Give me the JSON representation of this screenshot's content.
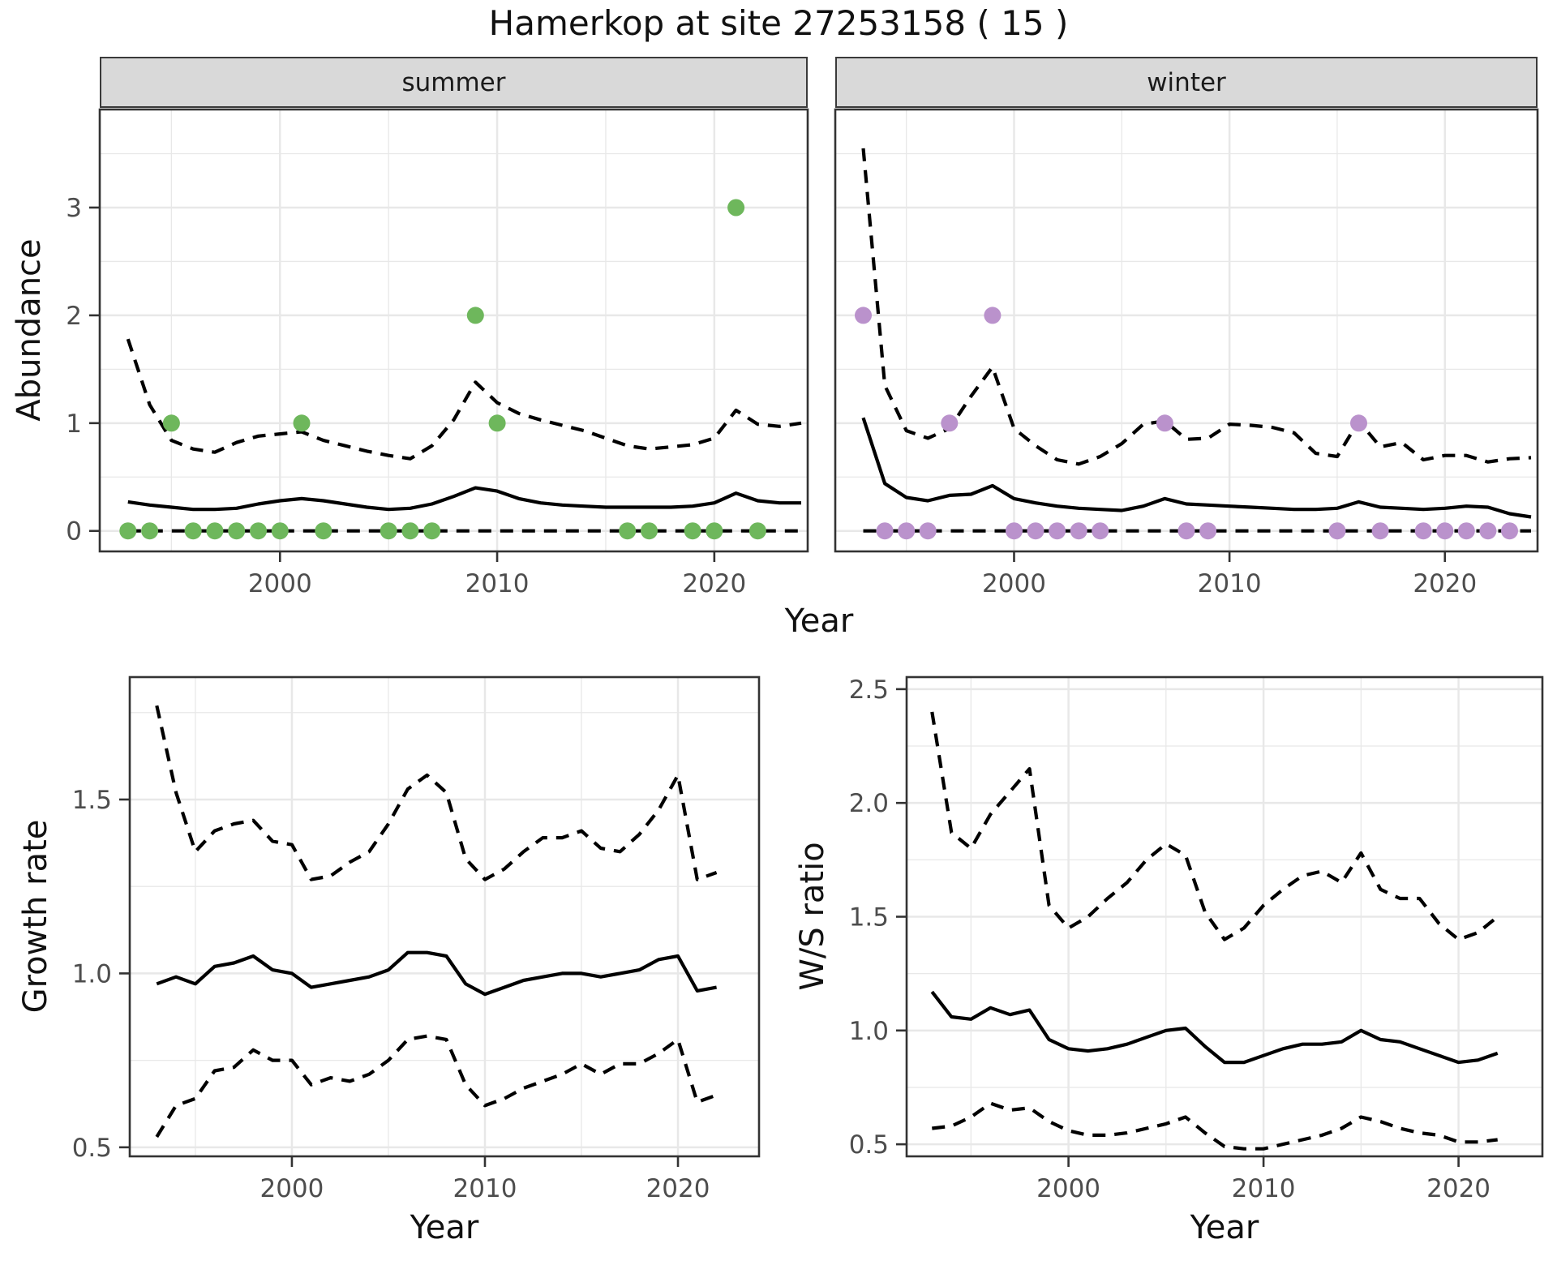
{
  "title": "Hamerkop at site 27253158 ( 15 )",
  "colors": {
    "summer_point": "#6eb75c",
    "winter_point": "#ba92cc",
    "line": "#000000",
    "grid": "#e8e8e8",
    "strip_background": "#d9d9d9",
    "tick_label": "#4d4d4d",
    "panel_border": "#333333"
  },
  "top_row_xlabel": "Year",
  "chart_data": [
    {
      "id": "abundance-summer",
      "type": "line",
      "facet_label": "summer",
      "ylabel": "Abundance",
      "xlabel": "Year",
      "xlim": [
        1991.7,
        2024.3
      ],
      "ylim": [
        -0.19,
        3.91
      ],
      "x_major_ticks": [
        2000,
        2010,
        2020
      ],
      "x_minor_ticks": [
        1995,
        2005,
        2015
      ],
      "x_tick_labels": [
        "2000",
        "2010",
        "2020"
      ],
      "y_major_ticks": [
        0,
        1,
        2,
        3
      ],
      "y_minor_ticks": [
        0.5,
        1.5,
        2.5,
        3.5
      ],
      "y_tick_labels": [
        "0",
        "1",
        "2",
        "3"
      ],
      "grid": true,
      "legend": "none",
      "point_color": "#6eb75c",
      "points": [
        [
          1993,
          0
        ],
        [
          1994,
          0
        ],
        [
          1995,
          1
        ],
        [
          1996,
          0
        ],
        [
          1997,
          0
        ],
        [
          1998,
          0
        ],
        [
          1999,
          0
        ],
        [
          2000,
          0
        ],
        [
          2001,
          1
        ],
        [
          2002,
          0
        ],
        [
          2005,
          0
        ],
        [
          2006,
          0
        ],
        [
          2007,
          0
        ],
        [
          2009,
          2
        ],
        [
          2010,
          1
        ],
        [
          2016,
          0
        ],
        [
          2017,
          0
        ],
        [
          2019,
          0
        ],
        [
          2020,
          0
        ],
        [
          2021,
          3
        ],
        [
          2022,
          0
        ]
      ],
      "series": [
        {
          "name": "mean",
          "style": "solid",
          "x0": 1993,
          "values": [
            0.27,
            0.24,
            0.22,
            0.2,
            0.2,
            0.21,
            0.25,
            0.28,
            0.3,
            0.28,
            0.25,
            0.22,
            0.2,
            0.21,
            0.25,
            0.32,
            0.4,
            0.37,
            0.3,
            0.26,
            0.24,
            0.23,
            0.22,
            0.22,
            0.22,
            0.22,
            0.23,
            0.26,
            0.35,
            0.28,
            0.26,
            0.26
          ]
        },
        {
          "name": "upper-ci",
          "style": "dashed",
          "x0": 1993,
          "values": [
            1.78,
            1.17,
            0.84,
            0.76,
            0.73,
            0.82,
            0.88,
            0.9,
            0.92,
            0.84,
            0.79,
            0.74,
            0.7,
            0.67,
            0.79,
            1.03,
            1.38,
            1.19,
            1.09,
            1.03,
            0.98,
            0.93,
            0.86,
            0.79,
            0.76,
            0.78,
            0.8,
            0.86,
            1.12,
            0.99,
            0.97,
            1.0
          ]
        },
        {
          "name": "lower-ci",
          "style": "dashed",
          "x0": 1993,
          "values": [
            0,
            0,
            0,
            0,
            0,
            0,
            0,
            0,
            0,
            0,
            0,
            0,
            0,
            0,
            0,
            0,
            0,
            0,
            0,
            0,
            0,
            0,
            0,
            0,
            0,
            0,
            0,
            0,
            0,
            0,
            0,
            0
          ]
        }
      ]
    },
    {
      "id": "abundance-winter",
      "type": "line",
      "facet_label": "winter",
      "ylabel": "Abundance",
      "xlabel": "Year",
      "xlim": [
        1991.7,
        2024.3
      ],
      "ylim": [
        -0.19,
        3.91
      ],
      "x_major_ticks": [
        2000,
        2010,
        2020
      ],
      "x_minor_ticks": [
        1995,
        2005,
        2015
      ],
      "x_tick_labels": [
        "2000",
        "2010",
        "2020"
      ],
      "y_major_ticks": [
        0,
        1,
        2,
        3
      ],
      "y_minor_ticks": [
        0.5,
        1.5,
        2.5,
        3.5
      ],
      "y_tick_labels": [],
      "grid": true,
      "legend": "none",
      "point_color": "#ba92cc",
      "points": [
        [
          1993,
          2
        ],
        [
          1994,
          0
        ],
        [
          1995,
          0
        ],
        [
          1996,
          0
        ],
        [
          1997,
          1
        ],
        [
          1999,
          2
        ],
        [
          2000,
          0
        ],
        [
          2001,
          0
        ],
        [
          2002,
          0
        ],
        [
          2003,
          0
        ],
        [
          2004,
          0
        ],
        [
          2007,
          1
        ],
        [
          2008,
          0
        ],
        [
          2009,
          0
        ],
        [
          2015,
          0
        ],
        [
          2016,
          1
        ],
        [
          2017,
          0
        ],
        [
          2019,
          0
        ],
        [
          2020,
          0
        ],
        [
          2021,
          0
        ],
        [
          2022,
          0
        ],
        [
          2023,
          0
        ]
      ],
      "series": [
        {
          "name": "mean",
          "style": "solid",
          "x0": 1993,
          "values": [
            1.05,
            0.44,
            0.31,
            0.28,
            0.33,
            0.34,
            0.42,
            0.3,
            0.26,
            0.23,
            0.21,
            0.2,
            0.19,
            0.23,
            0.3,
            0.25,
            0.24,
            0.23,
            0.22,
            0.21,
            0.2,
            0.2,
            0.21,
            0.27,
            0.22,
            0.21,
            0.2,
            0.21,
            0.23,
            0.22,
            0.16,
            0.13
          ]
        },
        {
          "name": "upper-ci",
          "style": "dashed",
          "x0": 1993,
          "values": [
            3.55,
            1.35,
            0.93,
            0.86,
            0.95,
            1.25,
            1.52,
            0.95,
            0.79,
            0.66,
            0.62,
            0.69,
            0.81,
            0.99,
            1.02,
            0.85,
            0.86,
            0.99,
            0.98,
            0.96,
            0.91,
            0.72,
            0.69,
            1.02,
            0.78,
            0.82,
            0.66,
            0.7,
            0.7,
            0.64,
            0.67,
            0.68
          ]
        },
        {
          "name": "lower-ci",
          "style": "dashed",
          "x0": 1993,
          "values": [
            0,
            0,
            0,
            0,
            0,
            0,
            0,
            0,
            0,
            0,
            0,
            0,
            0,
            0,
            0,
            0,
            0,
            0,
            0,
            0,
            0,
            0,
            0,
            0,
            0,
            0,
            0,
            0,
            0,
            0,
            0,
            0
          ]
        }
      ]
    },
    {
      "id": "growth-rate",
      "type": "line",
      "facet_label": "",
      "ylabel": "Growth rate",
      "xlabel": "Year",
      "xlim": [
        1991.6,
        2024.2
      ],
      "ylim": [
        0.474,
        1.852
      ],
      "x_major_ticks": [
        2000,
        2010,
        2020
      ],
      "x_minor_ticks": [
        1995,
        2005,
        2015
      ],
      "x_tick_labels": [
        "2000",
        "2010",
        "2020"
      ],
      "y_major_ticks": [
        0.5,
        1.0,
        1.5
      ],
      "y_minor_ticks": [
        0.75,
        1.25,
        1.75
      ],
      "y_tick_labels": [
        "0.5",
        "1.0",
        "1.5"
      ],
      "grid": true,
      "legend": "none",
      "point_color": "#000000",
      "points": [],
      "series": [
        {
          "name": "mean",
          "style": "solid",
          "x0": 1993,
          "values": [
            0.97,
            0.99,
            0.97,
            1.02,
            1.03,
            1.05,
            1.01,
            1.0,
            0.96,
            0.97,
            0.98,
            0.99,
            1.01,
            1.06,
            1.06,
            1.05,
            0.97,
            0.94,
            0.96,
            0.98,
            0.99,
            1.0,
            1.0,
            0.99,
            1.0,
            1.01,
            1.04,
            1.05,
            0.95,
            0.96
          ]
        },
        {
          "name": "upper-ci",
          "style": "dashed",
          "x0": 1993,
          "values": [
            1.77,
            1.52,
            1.35,
            1.41,
            1.43,
            1.44,
            1.38,
            1.37,
            1.27,
            1.28,
            1.32,
            1.35,
            1.43,
            1.53,
            1.57,
            1.52,
            1.33,
            1.27,
            1.3,
            1.35,
            1.39,
            1.39,
            1.41,
            1.36,
            1.35,
            1.4,
            1.47,
            1.57,
            1.27,
            1.29
          ]
        },
        {
          "name": "lower-ci",
          "style": "dashed",
          "x0": 1993,
          "values": [
            0.53,
            0.62,
            0.64,
            0.72,
            0.73,
            0.78,
            0.75,
            0.75,
            0.68,
            0.7,
            0.69,
            0.71,
            0.75,
            0.81,
            0.82,
            0.81,
            0.68,
            0.62,
            0.64,
            0.67,
            0.69,
            0.71,
            0.74,
            0.71,
            0.74,
            0.74,
            0.77,
            0.81,
            0.63,
            0.65
          ]
        }
      ]
    },
    {
      "id": "ws-ratio",
      "type": "line",
      "facet_label": "",
      "ylabel": "W/S ratio",
      "xlabel": "Year",
      "xlim": [
        1991.7,
        2024.3
      ],
      "ylim": [
        0.447,
        2.553
      ],
      "x_major_ticks": [
        2000,
        2010,
        2020
      ],
      "x_minor_ticks": [
        1995,
        2005,
        2015
      ],
      "x_tick_labels": [
        "2000",
        "2010",
        "2020"
      ],
      "y_major_ticks": [
        0.5,
        1.0,
        1.5,
        2.0,
        2.5
      ],
      "y_minor_ticks": [
        0.75,
        1.25,
        1.75,
        2.25
      ],
      "y_tick_labels": [
        "0.5",
        "1.0",
        "1.5",
        "2.0",
        "2.5"
      ],
      "grid": true,
      "legend": "none",
      "point_color": "#000000",
      "points": [],
      "series": [
        {
          "name": "mean",
          "style": "solid",
          "x0": 1993,
          "values": [
            1.17,
            1.06,
            1.05,
            1.1,
            1.07,
            1.09,
            0.96,
            0.92,
            0.91,
            0.92,
            0.94,
            0.97,
            1.0,
            1.01,
            0.93,
            0.86,
            0.86,
            0.89,
            0.92,
            0.94,
            0.94,
            0.95,
            1.0,
            0.96,
            0.95,
            0.92,
            0.89,
            0.86,
            0.87,
            0.9
          ]
        },
        {
          "name": "upper-ci",
          "style": "dashed",
          "x0": 1993,
          "values": [
            2.4,
            1.87,
            1.8,
            1.95,
            2.05,
            2.15,
            1.55,
            1.45,
            1.5,
            1.58,
            1.65,
            1.75,
            1.82,
            1.77,
            1.52,
            1.4,
            1.45,
            1.55,
            1.62,
            1.68,
            1.7,
            1.65,
            1.78,
            1.62,
            1.58,
            1.58,
            1.47,
            1.4,
            1.43,
            1.5
          ]
        },
        {
          "name": "lower-ci",
          "style": "dashed",
          "x0": 1993,
          "values": [
            0.57,
            0.58,
            0.62,
            0.68,
            0.65,
            0.66,
            0.6,
            0.56,
            0.54,
            0.54,
            0.55,
            0.57,
            0.59,
            0.62,
            0.55,
            0.49,
            0.48,
            0.48,
            0.5,
            0.52,
            0.54,
            0.57,
            0.62,
            0.6,
            0.57,
            0.55,
            0.54,
            0.51,
            0.51,
            0.52
          ]
        }
      ]
    }
  ]
}
